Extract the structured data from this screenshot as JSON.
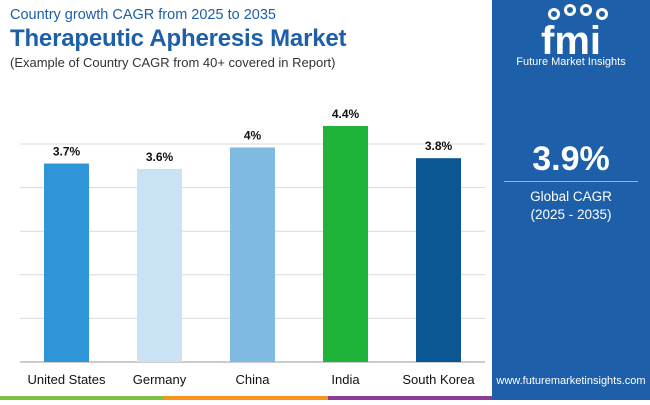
{
  "header": {
    "subtitle": "Country growth CAGR from 2025 to 2035",
    "title": "Therapeutic Apheresis Market",
    "note": "(Example of Country CAGR from 40+ covered in Report)"
  },
  "sidebar": {
    "logo_text": "fmi",
    "brand_name": "Future Market Insights",
    "global_value": "3.9%",
    "global_label_line1": "Global CAGR",
    "global_label_line2": "(2025 - 2035)",
    "website": "www.futuremarketinsights.com"
  },
  "colors": {
    "brand_blue": "#1d5fa8",
    "stripe": [
      "#7dc242",
      "#f7941d",
      "#8e3b97"
    ]
  },
  "chart_data": {
    "type": "bar",
    "categories": [
      "United States",
      "Germany",
      "China",
      "India",
      "South Korea"
    ],
    "values": [
      3.7,
      3.6,
      4.0,
      4.4,
      3.8
    ],
    "data_labels": [
      "3.7%",
      "3.6%",
      "4%",
      "4.4%",
      "3.8%"
    ],
    "bar_colors": [
      "#2e95d9",
      "#c9e3f4",
      "#7fbae3",
      "#1fb33a",
      "#0a5794"
    ],
    "ylim": [
      0,
      4.4
    ],
    "grid": true,
    "title": "",
    "xlabel": "",
    "ylabel": ""
  }
}
